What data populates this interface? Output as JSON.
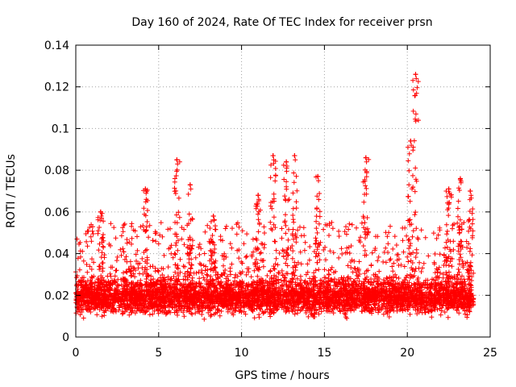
{
  "chart_data": {
    "type": "scatter",
    "title": "Day 160 of 2024, Rate Of TEC Index for receiver prsn",
    "xlabel": "GPS time / hours",
    "ylabel": "ROTI / TECUs",
    "xlim": [
      0,
      25
    ],
    "ylim": [
      0,
      0.14
    ],
    "x_ticks": [
      0,
      5,
      10,
      15,
      20,
      25
    ],
    "y_ticks": [
      0,
      0.02,
      0.04,
      0.06,
      0.08,
      0.1,
      0.12,
      0.14
    ],
    "x_tick_labels": [
      "0",
      "5",
      "10",
      "15",
      "20",
      "25"
    ],
    "y_tick_labels": [
      "0",
      "0.02",
      "0.04",
      "0.06",
      "0.08",
      "0.1",
      "0.12",
      "0.14"
    ],
    "grid": true,
    "marker": "+",
    "color": "#ff0000",
    "series": [
      {
        "name": "ROTI",
        "description_of_distribution": "dense band of points between 0.01 and 0.03 TECU/min from 0 to 24 h",
        "baseline_range": [
          0.008,
          0.03
        ],
        "peaks": [
          {
            "x": 1.5,
            "y": 0.06
          },
          {
            "x": 4.2,
            "y": 0.071
          },
          {
            "x": 6.1,
            "y": 0.085
          },
          {
            "x": 6.9,
            "y": 0.073
          },
          {
            "x": 8.3,
            "y": 0.058
          },
          {
            "x": 11.0,
            "y": 0.068
          },
          {
            "x": 11.9,
            "y": 0.087
          },
          {
            "x": 12.7,
            "y": 0.084
          },
          {
            "x": 13.2,
            "y": 0.087
          },
          {
            "x": 14.6,
            "y": 0.077
          },
          {
            "x": 17.5,
            "y": 0.086
          },
          {
            "x": 20.2,
            "y": 0.094
          },
          {
            "x": 20.5,
            "y": 0.126
          },
          {
            "x": 22.5,
            "y": 0.071
          },
          {
            "x": 23.2,
            "y": 0.076
          },
          {
            "x": 23.8,
            "y": 0.07
          }
        ]
      }
    ]
  }
}
